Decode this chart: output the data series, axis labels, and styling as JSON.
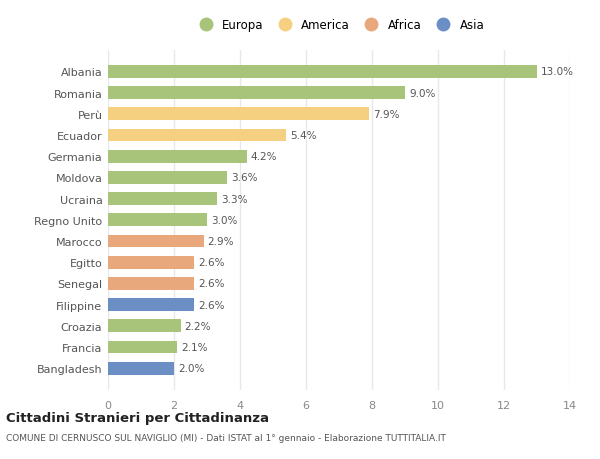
{
  "categories": [
    "Albania",
    "Romania",
    "Perù",
    "Ecuador",
    "Germania",
    "Moldova",
    "Ucraina",
    "Regno Unito",
    "Marocco",
    "Egitto",
    "Senegal",
    "Filippine",
    "Croazia",
    "Francia",
    "Bangladesh"
  ],
  "values": [
    13.0,
    9.0,
    7.9,
    5.4,
    4.2,
    3.6,
    3.3,
    3.0,
    2.9,
    2.6,
    2.6,
    2.6,
    2.2,
    2.1,
    2.0
  ],
  "continents": [
    "Europa",
    "Europa",
    "America",
    "America",
    "Europa",
    "Europa",
    "Europa",
    "Europa",
    "Africa",
    "Africa",
    "Africa",
    "Asia",
    "Europa",
    "Europa",
    "Asia"
  ],
  "colors": {
    "Europa": "#a8c47a",
    "America": "#f5d080",
    "Africa": "#e8a87c",
    "Asia": "#6b8fc4"
  },
  "legend_order": [
    "Europa",
    "America",
    "Africa",
    "Asia"
  ],
  "title": "Cittadini Stranieri per Cittadinanza",
  "subtitle": "COMUNE DI CERNUSCO SUL NAVIGLIO (MI) - Dati ISTAT al 1° gennaio - Elaborazione TUTTITALIA.IT",
  "xlim": [
    0,
    14
  ],
  "xticks": [
    0,
    2,
    4,
    6,
    8,
    10,
    12,
    14
  ],
  "plot_bg": "#ffffff",
  "fig_bg": "#ffffff",
  "grid_color": "#e8e8e8"
}
